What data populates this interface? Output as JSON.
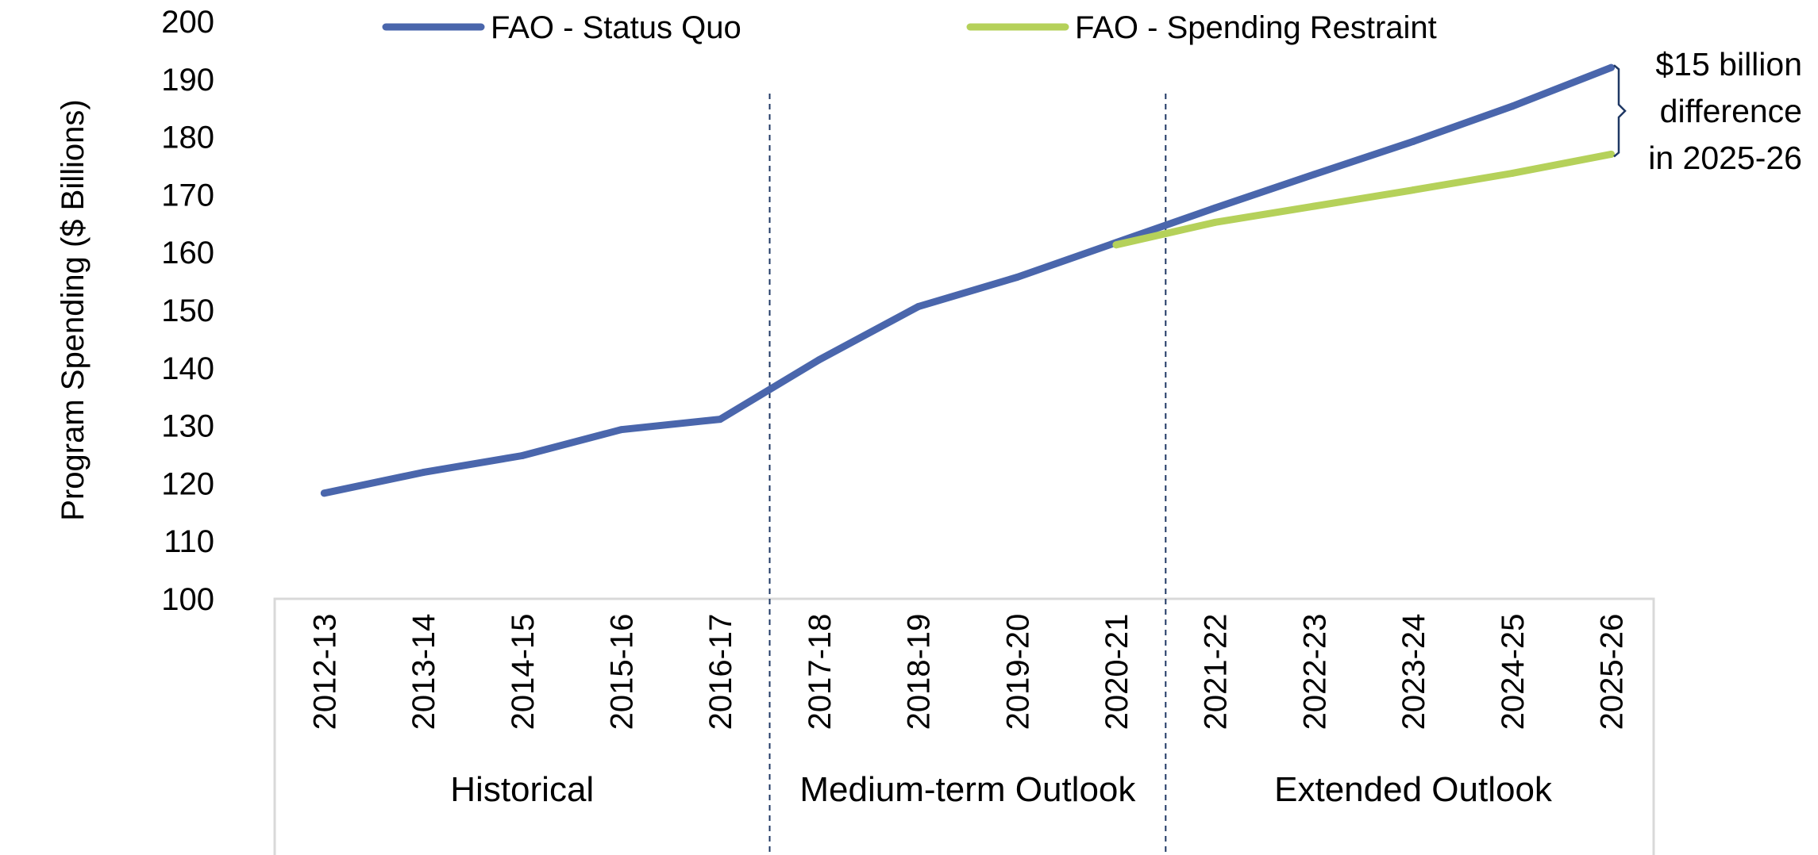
{
  "chart_data": {
    "type": "line",
    "title": "",
    "ylabel": "Program Spending ($ Billions)",
    "xlabel": "",
    "ylim": [
      100,
      200
    ],
    "yticks": [
      100,
      110,
      120,
      130,
      140,
      150,
      160,
      170,
      180,
      190,
      200
    ],
    "categories": [
      "2012-13",
      "2013-14",
      "2014-15",
      "2015-16",
      "2016-17",
      "2017-18",
      "2018-19",
      "2019-20",
      "2020-21",
      "2021-22",
      "2022-23",
      "2023-24",
      "2024-25",
      "2025-26"
    ],
    "series": [
      {
        "name": "FAO - Status Quo",
        "color": "#4a66ac",
        "values": [
          118.3,
          121.9,
          124.8,
          129.3,
          131.1,
          141.4,
          150.6,
          155.7,
          161.7,
          167.7,
          173.5,
          179.2,
          185.3,
          192.0
        ]
      },
      {
        "name": "FAO - Spending Restraint",
        "color": "#b5d15a",
        "values": [
          null,
          null,
          null,
          null,
          null,
          null,
          null,
          null,
          161.3,
          165.2,
          168.0,
          170.8,
          173.7,
          177.0
        ]
      }
    ],
    "groups": [
      {
        "label": "Historical",
        "start": 0,
        "end": 4
      },
      {
        "label": "Medium-term Outlook",
        "start": 5,
        "end": 8
      },
      {
        "label": "Extended Outlook",
        "start": 9,
        "end": 13
      }
    ],
    "legend_position": "top",
    "grid": false,
    "annotation": {
      "lines": [
        "$15 billion",
        "difference",
        "in 2025-26"
      ],
      "category": "2025-26"
    }
  }
}
